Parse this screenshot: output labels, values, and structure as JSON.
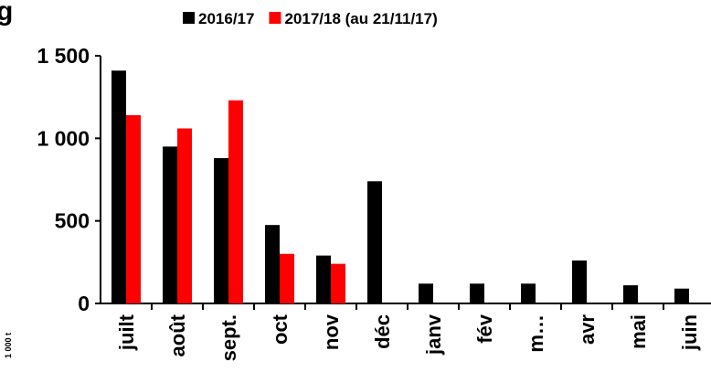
{
  "chart_data": {
    "type": "bar",
    "title": "g",
    "y_label": "1 000 t",
    "categories": [
      "juilt",
      "août",
      "sept.",
      "oct",
      "nov",
      "déc",
      "janv",
      "fév",
      "m…",
      "avr",
      "mai",
      "juin"
    ],
    "series": [
      {
        "name": "2016/17",
        "color": "#000000",
        "values": [
          1410,
          950,
          880,
          475,
          290,
          740,
          120,
          120,
          120,
          260,
          110,
          90
        ]
      },
      {
        "name": "2017/18 (au 21/11/17)",
        "color": "#ff0000",
        "values": [
          1140,
          1060,
          1230,
          300,
          240,
          null,
          null,
          null,
          null,
          null,
          null,
          null
        ]
      }
    ],
    "ylim": [
      0,
      1500
    ],
    "yticks": [
      0,
      {
        "value": 500,
        "label": "500"
      },
      {
        "value": 1000,
        "label": "1 000"
      },
      {
        "value": 1500,
        "label": "1 500"
      }
    ],
    "grid": false,
    "legend": "top"
  }
}
